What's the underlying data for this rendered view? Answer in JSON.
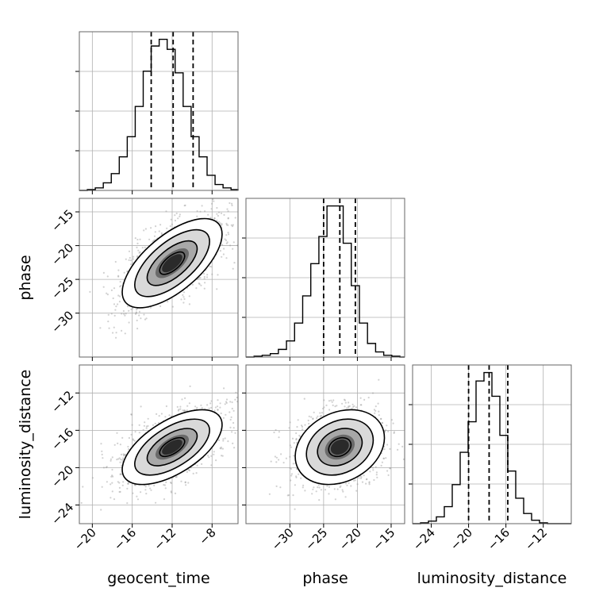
{
  "chart_data": {
    "type": "corner",
    "params": [
      {
        "name": "geocent_time",
        "range": [
          -21.3,
          -5.4
        ],
        "ticks": [
          -20,
          -16,
          -12,
          -8
        ],
        "quantiles": [
          -14.1,
          -11.9,
          -9.9
        ],
        "hist": {
          "edges": [
            -21.3,
            -20.5,
            -19.7,
            -18.9,
            -18.1,
            -17.3,
            -16.5,
            -15.7,
            -14.9,
            -14.1,
            -13.3,
            -12.5,
            -11.7,
            -10.9,
            -10.1,
            -9.3,
            -8.5,
            -7.7,
            -6.9,
            -6.1,
            -5.4
          ],
          "counts": [
            0,
            1,
            3,
            9,
            20,
            40,
            64,
            100,
            142,
            172,
            180,
            168,
            140,
            100,
            64,
            40,
            18,
            7,
            3,
            1
          ]
        }
      },
      {
        "name": "phase",
        "range": [
          -36.5,
          -13.0
        ],
        "ticks": [
          -30,
          -25,
          -20,
          -15
        ],
        "quantiles": [
          -25.0,
          -22.6,
          -20.3
        ],
        "hist": {
          "edges": [
            -36.5,
            -35.3,
            -34.1,
            -32.9,
            -31.7,
            -30.5,
            -29.3,
            -28.1,
            -26.9,
            -25.7,
            -24.5,
            -23.3,
            -22.1,
            -20.9,
            -19.7,
            -18.5,
            -17.3,
            -16.1,
            -14.9,
            -13.7,
            -13.0
          ],
          "counts": [
            0,
            1,
            2,
            4,
            9,
            19,
            40,
            72,
            110,
            142,
            178,
            178,
            134,
            84,
            40,
            16,
            6,
            2,
            1,
            0
          ]
        }
      },
      {
        "name": "luminosity_distance",
        "range": [
          -26.0,
          -9.0
        ],
        "ticks": [
          -24,
          -20,
          -16,
          -12
        ],
        "quantiles": [
          -20.0,
          -17.8,
          -15.8
        ],
        "hist": {
          "edges": [
            -26.0,
            -25.15,
            -24.3,
            -23.45,
            -22.6,
            -21.75,
            -20.9,
            -20.05,
            -19.2,
            -18.35,
            -17.5,
            -16.65,
            -15.8,
            -14.95,
            -14.1,
            -13.25,
            -12.4,
            -11.55,
            -10.7,
            -9.85,
            -9.0
          ],
          "counts": [
            0,
            1,
            3,
            8,
            20,
            46,
            84,
            120,
            168,
            178,
            150,
            104,
            62,
            30,
            12,
            4,
            1,
            0,
            0,
            0
          ]
        }
      }
    ],
    "pairs": [
      {
        "x": "geocent_time",
        "y": "phase",
        "x_mean": -12.0,
        "y_mean": -22.6,
        "x_std": 2.5,
        "y_std": 3.3,
        "corr": 0.65
      },
      {
        "x": "geocent_time",
        "y": "luminosity_distance",
        "x_mean": -12.0,
        "y_mean": -17.8,
        "x_std": 2.5,
        "y_std": 2.0,
        "corr": 0.6
      },
      {
        "x": "phase",
        "y": "luminosity_distance",
        "x_mean": -22.6,
        "y_mean": -17.8,
        "x_std": 3.3,
        "y_std": 2.0,
        "corr": 0.25
      }
    ],
    "contour_levels": [
      0.118,
      0.393,
      0.675,
      0.865
    ],
    "grid": true
  }
}
